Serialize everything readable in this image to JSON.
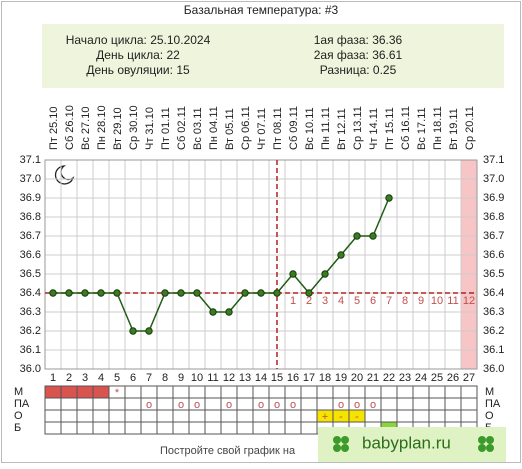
{
  "chart_data": {
    "type": "line",
    "title": "Базальная температура: #3",
    "info": {
      "left": [
        {
          "label": "Начало цикла:",
          "value": "25.10.2024"
        },
        {
          "label": "День цикла:",
          "value": 22
        },
        {
          "label": "День овуляции:",
          "value": 15
        }
      ],
      "right": [
        {
          "label": "1ая фаза:",
          "value": 36.36
        },
        {
          "label": "2ая фаза:",
          "value": 36.61
        },
        {
          "label": "Разница:",
          "value": 0.25
        }
      ]
    },
    "weekdays": [
      "Пт",
      "Сб",
      "Вс",
      "Пн",
      "Вт",
      "Ср",
      "Чт",
      "Пт",
      "Сб",
      "Вс",
      "Пн",
      "Вт",
      "Ср",
      "Чт",
      "Пт",
      "Сб",
      "Вс",
      "Пн",
      "Вт",
      "Ср",
      "Чт",
      "Пт",
      "Сб",
      "Вс",
      "Пн",
      "Вт",
      "Ср"
    ],
    "categories": [
      "25.10",
      "26.10",
      "27.10",
      "28.10",
      "29.10",
      "30.10",
      "31.10",
      "01.11",
      "02.11",
      "03.11",
      "04.11",
      "05.11",
      "06.11",
      "07.11",
      "08.11",
      "09.11",
      "10.11",
      "11.11",
      "12.11",
      "13.11",
      "14.11",
      "15.11",
      "16.11",
      "17.11",
      "18.11",
      "19.11",
      "20.11"
    ],
    "day_numbers": [
      1,
      2,
      3,
      4,
      5,
      6,
      7,
      8,
      9,
      10,
      11,
      12,
      13,
      14,
      15,
      16,
      17,
      18,
      19,
      20,
      21,
      22,
      23,
      24,
      25,
      26,
      27
    ],
    "phase_numbers": [
      1,
      2,
      3,
      4,
      5,
      6,
      7,
      8,
      9,
      10,
      11,
      12
    ],
    "series": [
      {
        "name": "Температура",
        "color": "#1f5c14",
        "values": [
          36.4,
          36.4,
          36.4,
          36.4,
          36.4,
          36.2,
          36.2,
          36.4,
          36.4,
          36.4,
          36.3,
          36.3,
          36.4,
          36.4,
          36.4,
          36.5,
          36.4,
          36.5,
          36.6,
          36.7,
          36.7,
          36.9,
          null,
          null,
          null,
          null,
          null
        ]
      }
    ],
    "coverline": 36.4,
    "ylim": [
      36.0,
      37.1
    ],
    "yticks": [
      {
        "value": 36.0,
        "label": "36.0"
      },
      36.1,
      36.2,
      36.3,
      36.4,
      36.5,
      36.6,
      36.7,
      36.8,
      36.9,
      {
        "value": 37.0,
        "label": "37.0"
      },
      37.1
    ],
    "grid": true,
    "tracker": [
      {
        "label": "М",
        "filled_days": [
          1,
          2,
          3,
          4
        ],
        "fill": "#d9534f",
        "marks": [
          {
            "day": 5,
            "text": "*"
          }
        ]
      },
      {
        "label": "ПА",
        "filled_days": [],
        "marks": [
          {
            "day": 7,
            "text": "о"
          },
          {
            "day": 9,
            "text": "о"
          },
          {
            "day": 10,
            "text": "о"
          },
          {
            "day": 12,
            "text": "о"
          },
          {
            "day": 14,
            "text": "о"
          },
          {
            "day": 15,
            "text": "о"
          },
          {
            "day": 16,
            "text": "о"
          },
          {
            "day": 19,
            "text": "о"
          },
          {
            "day": 20,
            "text": "о"
          },
          {
            "day": 21,
            "text": "о"
          }
        ]
      },
      {
        "label": "О",
        "filled_days": [
          18,
          19,
          20
        ],
        "fill": "#f5e400",
        "marks": [
          {
            "day": 18,
            "text": "+"
          },
          {
            "day": 19,
            "text": "-"
          },
          {
            "day": 20,
            "text": "-"
          }
        ]
      },
      {
        "label": "Б",
        "filled_days": [
          22
        ],
        "fill": "#8cd43c",
        "marks": []
      }
    ],
    "footer": "Постройте свой график на",
    "logo": "babyplan.ru"
  }
}
